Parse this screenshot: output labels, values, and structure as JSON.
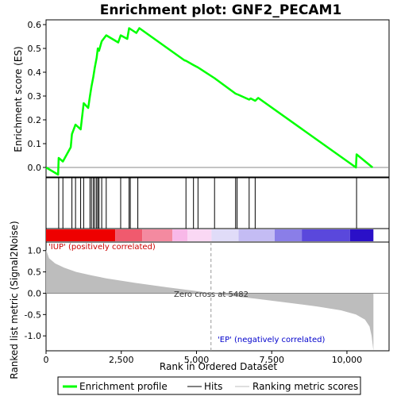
{
  "chart_data": {
    "type": "line",
    "title": "Enrichment plot: GNF2_PECAM1",
    "es_panel": {
      "ylabel": "Enrichment score (ES)",
      "ylim": [
        -0.04,
        0.62
      ],
      "yticks": [
        0.0,
        0.1,
        0.2,
        0.3,
        0.4,
        0.5,
        0.6
      ],
      "ytick_labels": [
        "0.0",
        "0.1",
        "0.2",
        "0.3",
        "0.4",
        "0.5",
        "0.6"
      ],
      "series": [
        {
          "name": "Enrichment profile",
          "color": "#00ff00",
          "x": [
            0,
            400,
            420,
            560,
            820,
            860,
            980,
            1150,
            1250,
            1400,
            1460,
            1510,
            1570,
            1620,
            1680,
            1720,
            1760,
            1850,
            2000,
            2400,
            2480,
            2700,
            2760,
            3000,
            3100,
            4600,
            4650,
            4900,
            5050,
            5600,
            6300,
            6400,
            6750,
            6800,
            6950,
            7050,
            10300,
            10320,
            10850
          ],
          "y": [
            0.0,
            -0.03,
            0.04,
            0.025,
            0.085,
            0.14,
            0.18,
            0.16,
            0.27,
            0.25,
            0.3,
            0.34,
            0.38,
            0.42,
            0.46,
            0.5,
            0.49,
            0.53,
            0.555,
            0.525,
            0.555,
            0.54,
            0.585,
            0.565,
            0.585,
            0.45,
            0.448,
            0.43,
            0.42,
            0.375,
            0.31,
            0.305,
            0.285,
            0.29,
            0.28,
            0.292,
            0.0,
            0.055,
            0.0
          ]
        }
      ]
    },
    "hits": {
      "name": "Hits",
      "color": "#000000",
      "positions": [
        420,
        560,
        860,
        980,
        1150,
        1250,
        1460,
        1510,
        1570,
        1620,
        1680,
        1720,
        1760,
        1850,
        2000,
        2480,
        2760,
        2800,
        3050,
        4650,
        4900,
        5050,
        5600,
        6300,
        6350,
        6750,
        6950,
        10320
      ]
    },
    "heatmap_bar": {
      "segments": [
        {
          "from": 0,
          "to": 2300,
          "color": "#ee0000"
        },
        {
          "from": 2300,
          "to": 3200,
          "color": "#f05a6e"
        },
        {
          "from": 3200,
          "to": 4200,
          "color": "#f48aa0"
        },
        {
          "from": 4200,
          "to": 4700,
          "color": "#f8b8e8"
        },
        {
          "from": 4700,
          "to": 5500,
          "color": "#fad8f4"
        },
        {
          "from": 5500,
          "to": 6400,
          "color": "#e0dcf8"
        },
        {
          "from": 6400,
          "to": 7600,
          "color": "#c4bcf4"
        },
        {
          "from": 7600,
          "to": 8500,
          "color": "#8a7ee8"
        },
        {
          "from": 8500,
          "to": 10100,
          "color": "#5a48dc"
        },
        {
          "from": 10100,
          "to": 10880,
          "color": "#2a10c8"
        }
      ]
    },
    "metric_panel": {
      "ylabel": "Ranked list metric (Signal2Noise)",
      "ylim": [
        -1.35,
        1.2
      ],
      "yticks": [
        1.0,
        0.5,
        0.0,
        -0.5,
        -1.0
      ],
      "ytick_labels": [
        "1.0",
        "0.5",
        "0.0",
        "-0.5",
        "-1.0"
      ],
      "series": [
        {
          "name": "Ranking metric scores",
          "color": "#bdbdbd",
          "x": [
            0,
            100,
            300,
            600,
            1000,
            1500,
            2000,
            3000,
            4000,
            5000,
            5482,
            6000,
            7000,
            8000,
            9000,
            9800,
            10300,
            10600,
            10750,
            10820,
            10880
          ],
          "y": [
            1.02,
            0.82,
            0.7,
            0.6,
            0.5,
            0.42,
            0.35,
            0.24,
            0.14,
            0.05,
            0.0,
            -0.05,
            -0.13,
            -0.22,
            -0.31,
            -0.4,
            -0.5,
            -0.62,
            -0.78,
            -1.0,
            -1.35
          ]
        }
      ],
      "annotations": {
        "up": "'IUP' (positively correlated)",
        "zero": "Zero cross at 5482",
        "down": "'EP' (negatively correlated)"
      },
      "zero_cross": 5482
    },
    "xaxis": {
      "label": "Rank in Ordered Dataset",
      "xlim": [
        0,
        11400
      ],
      "ticks": [
        0,
        2500,
        5000,
        7500,
        10000
      ],
      "tick_labels": [
        "0",
        "2,500",
        "5,000",
        "7,500",
        "10,000"
      ]
    },
    "legend": {
      "placement": "bottom",
      "items": [
        {
          "label": "Enrichment profile",
          "color": "#00ff00"
        },
        {
          "label": "Hits",
          "color": "#000000"
        },
        {
          "label": "Ranking metric scores",
          "color": "#bdbdbd"
        }
      ]
    }
  }
}
